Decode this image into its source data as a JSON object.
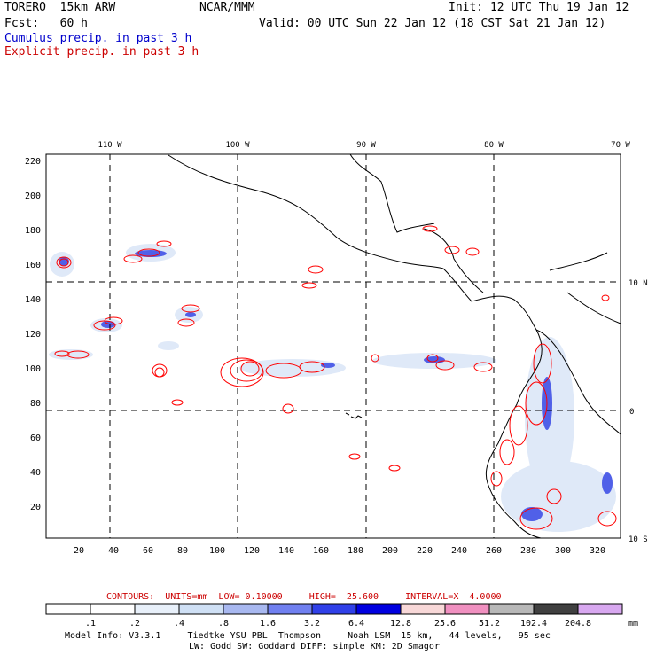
{
  "header": {
    "model": "TORERO  15km ARW",
    "org": "NCAR/MMM",
    "init": "Init: 12 UTC Thu 19 Jan 12",
    "fcst": "Fcst:   60 h",
    "valid": "Valid: 00 UTC Sun 22 Jan 12 (18 CST Sat 21 Jan 12)",
    "field1": "Cumulus precip. in past 3 h",
    "field2": "Explicit precip. in past 3 h"
  },
  "colors": {
    "cumulus": "#0000cc",
    "explicit": "#cc0000",
    "contour": "#ff0000",
    "land": "#000000"
  },
  "axes": {
    "top_lon": [
      "110 W",
      "100 W",
      "90 W",
      "80 W",
      "70 W"
    ],
    "right_lat": [
      "10 N",
      "0",
      "10 S"
    ],
    "left_y": [
      "220",
      "200",
      "180",
      "160",
      "140",
      "120",
      "100",
      "80",
      "60",
      "40",
      "20"
    ],
    "bottom_x": [
      "20",
      "40",
      "60",
      "80",
      "100",
      "120",
      "140",
      "160",
      "180",
      "200",
      "220",
      "240",
      "260",
      "280",
      "300",
      "320"
    ]
  },
  "contour_info": {
    "label": "CONTOURS:  UNITS=mm  LOW= 0.10000     HIGH=  25.600     INTERVAL=X  4.0000"
  },
  "colorbar": {
    "labels": [
      ".1",
      ".2",
      ".4",
      ".8",
      "1.6",
      "3.2",
      "6.4",
      "12.8",
      "25.6",
      "51.2",
      "102.4",
      "204.8"
    ],
    "units": "mm",
    "colors": [
      "#ffffff",
      "#ffffff",
      "#e8f0fa",
      "#cfe0f5",
      "#a8b8f0",
      "#7080f0",
      "#3040e8",
      "#0000e0",
      "#f8d8d8",
      "#f090c0",
      "#b8b8b8",
      "#404040",
      "#d8a8f0"
    ]
  },
  "footer": {
    "line1": "Model Info: V3.3.1     Tiedtke YSU PBL  Thompson     Noah LSM  15 km,   44 levels,   95 sec",
    "line2": "LW: Godd SW: Goddard DIFF: simple KM: 2D Smagor"
  }
}
